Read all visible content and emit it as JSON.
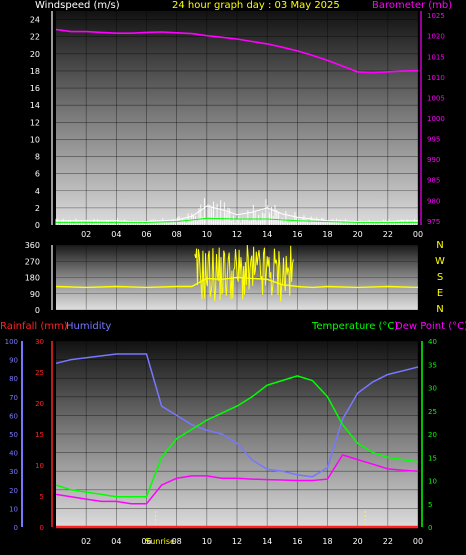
{
  "header": {
    "left_label": "Windspeed (m/s)",
    "center_label": "24 hour graph day : 03 May 2025",
    "right_label": "Barometer (mb)"
  },
  "lower_header": {
    "rainfall_label": "Rainfall (mm)",
    "humidity_label": "Humidity",
    "temperature_label": "Temperature (°C)",
    "dewpoint_label": "Dew Point (°C)"
  },
  "colors": {
    "barometer": "#ff00ff",
    "wind_speed": "#ffffff",
    "wind_avg": "#00ff00",
    "direction": "#ffff00",
    "humidity": "#7777ff",
    "temperature": "#00ff00",
    "dewpoint": "#ff00ff",
    "rainfall": "#ff2222",
    "temp_axis": "#00ff00",
    "wind_axis": "#ffffff",
    "title": "#ffff00"
  },
  "chart_data": [
    {
      "type": "line",
      "name": "wind-barometer",
      "x_ticks": [
        "02",
        "04",
        "06",
        "08",
        "10",
        "12",
        "14",
        "16",
        "18",
        "20",
        "22",
        "00"
      ],
      "y_left": {
        "ticks": [
          0,
          2,
          4,
          6,
          8,
          10,
          12,
          14,
          16,
          18,
          20,
          22,
          24
        ],
        "range": [
          0,
          25
        ]
      },
      "y_right": {
        "ticks": [
          975,
          980,
          985,
          990,
          995,
          1000,
          1005,
          1010,
          1015,
          1020,
          1025
        ],
        "range": [
          974,
          1026
        ]
      },
      "series": [
        {
          "key": "barometer",
          "axis": "right",
          "x": [
            0,
            1,
            2,
            3,
            4,
            5,
            6,
            7,
            8,
            9,
            10,
            11,
            12,
            13,
            14,
            15,
            16,
            17,
            18,
            19,
            20,
            21,
            22,
            23,
            24
          ],
          "values": [
            1021.5,
            1021,
            1021,
            1020.8,
            1020.6,
            1020.6,
            1020.8,
            1020.9,
            1020.7,
            1020.5,
            1020,
            1019.6,
            1019.2,
            1018.6,
            1018,
            1017.2,
            1016.3,
            1015.2,
            1014,
            1012.6,
            1011.2,
            1011,
            1011.2,
            1011.4,
            1011.5
          ]
        },
        {
          "key": "wind_speed",
          "axis": "left",
          "x": [
            0,
            1,
            2,
            3,
            4,
            5,
            6,
            7,
            8,
            9,
            10,
            11,
            12,
            13,
            14,
            15,
            16,
            17,
            18,
            19,
            20,
            21,
            22,
            23,
            24
          ],
          "values": [
            0.5,
            0.5,
            0.5,
            0.5,
            0.5,
            0.4,
            0.4,
            0.5,
            0.6,
            1.0,
            2.2,
            1.8,
            1.2,
            1.5,
            2.0,
            1.3,
            0.9,
            0.7,
            0.5,
            0.5,
            0.4,
            0.4,
            0.4,
            0.5,
            0.5
          ]
        },
        {
          "key": "wind_avg",
          "axis": "left",
          "x": [
            0,
            2,
            4,
            6,
            8,
            10,
            12,
            14,
            16,
            18,
            20,
            22,
            24
          ],
          "values": [
            0.3,
            0.3,
            0.3,
            0.3,
            0.4,
            0.8,
            0.7,
            0.7,
            0.5,
            0.4,
            0.3,
            0.3,
            0.3
          ]
        }
      ]
    },
    {
      "type": "line",
      "name": "wind-direction",
      "y_ticks": [
        0,
        90,
        180,
        270,
        360
      ],
      "y_range": [
        0,
        360
      ],
      "direction_labels": [
        "N",
        "W",
        "S",
        "E",
        "N"
      ],
      "series": [
        {
          "key": "direction",
          "x": [
            0,
            2,
            4,
            6,
            8,
            9,
            10,
            11,
            12,
            13,
            14,
            15,
            16,
            17,
            18,
            20,
            22,
            24
          ],
          "values": [
            130,
            125,
            130,
            125,
            130,
            130,
            175,
            170,
            180,
            175,
            170,
            140,
            130,
            125,
            130,
            125,
            130,
            125
          ]
        }
      ]
    },
    {
      "type": "line",
      "name": "rain-humidity-temperature",
      "x_ticks": [
        "02",
        "04",
        "06",
        "08",
        "10",
        "12",
        "14",
        "16",
        "18",
        "20",
        "22",
        "00"
      ],
      "y_rain": {
        "ticks": [
          0,
          5,
          10,
          15,
          20,
          25,
          30
        ],
        "range": [
          0,
          30
        ]
      },
      "y_humidity": {
        "ticks": [
          0,
          10,
          20,
          30,
          40,
          50,
          60,
          70,
          80,
          90,
          100
        ],
        "range": [
          0,
          100
        ]
      },
      "y_temp": {
        "ticks": [
          0,
          5,
          10,
          15,
          20,
          25,
          30,
          35,
          40
        ],
        "range": [
          0,
          40
        ]
      },
      "markers": [
        "Sunrise"
      ],
      "series": [
        {
          "key": "humidity",
          "axis": "humidity",
          "x": [
            0,
            1,
            2,
            3,
            4,
            5,
            6,
            7,
            8,
            9,
            10,
            11,
            12,
            13,
            14,
            15,
            16,
            17,
            18,
            19,
            20,
            21,
            22,
            23,
            24
          ],
          "values": [
            88,
            90,
            91,
            92,
            93,
            93,
            93,
            65,
            60,
            55,
            52,
            50,
            45,
            36,
            31,
            30,
            28,
            27,
            32,
            58,
            72,
            78,
            82,
            84,
            86
          ]
        },
        {
          "key": "temperature",
          "axis": "temp",
          "x": [
            0,
            1,
            2,
            3,
            4,
            5,
            6,
            7,
            8,
            9,
            10,
            11,
            12,
            13,
            14,
            15,
            16,
            17,
            18,
            19,
            20,
            21,
            22,
            23,
            24
          ],
          "values": [
            9,
            8,
            7.5,
            7,
            6.5,
            6.5,
            6.5,
            15,
            19,
            21,
            23,
            24.5,
            26,
            28,
            30.5,
            31.5,
            32.5,
            31.5,
            28,
            22,
            18,
            16,
            15,
            14.5,
            14
          ]
        },
        {
          "key": "dewpoint",
          "axis": "temp",
          "x": [
            0,
            1,
            2,
            3,
            4,
            5,
            6,
            7,
            8,
            9,
            10,
            11,
            12,
            13,
            14,
            15,
            16,
            17,
            18,
            19,
            20,
            21,
            22,
            23,
            24
          ],
          "values": [
            7,
            6.5,
            6,
            5.5,
            5.5,
            5,
            5,
            9,
            10.5,
            11,
            11,
            10.5,
            10.5,
            10.3,
            10.2,
            10.1,
            10,
            10,
            10.3,
            15.5,
            14.5,
            13.5,
            12.5,
            12.2,
            12
          ]
        },
        {
          "key": "rainfall",
          "axis": "rain",
          "x": [
            0,
            24
          ],
          "values": [
            0,
            0
          ]
        }
      ]
    }
  ]
}
